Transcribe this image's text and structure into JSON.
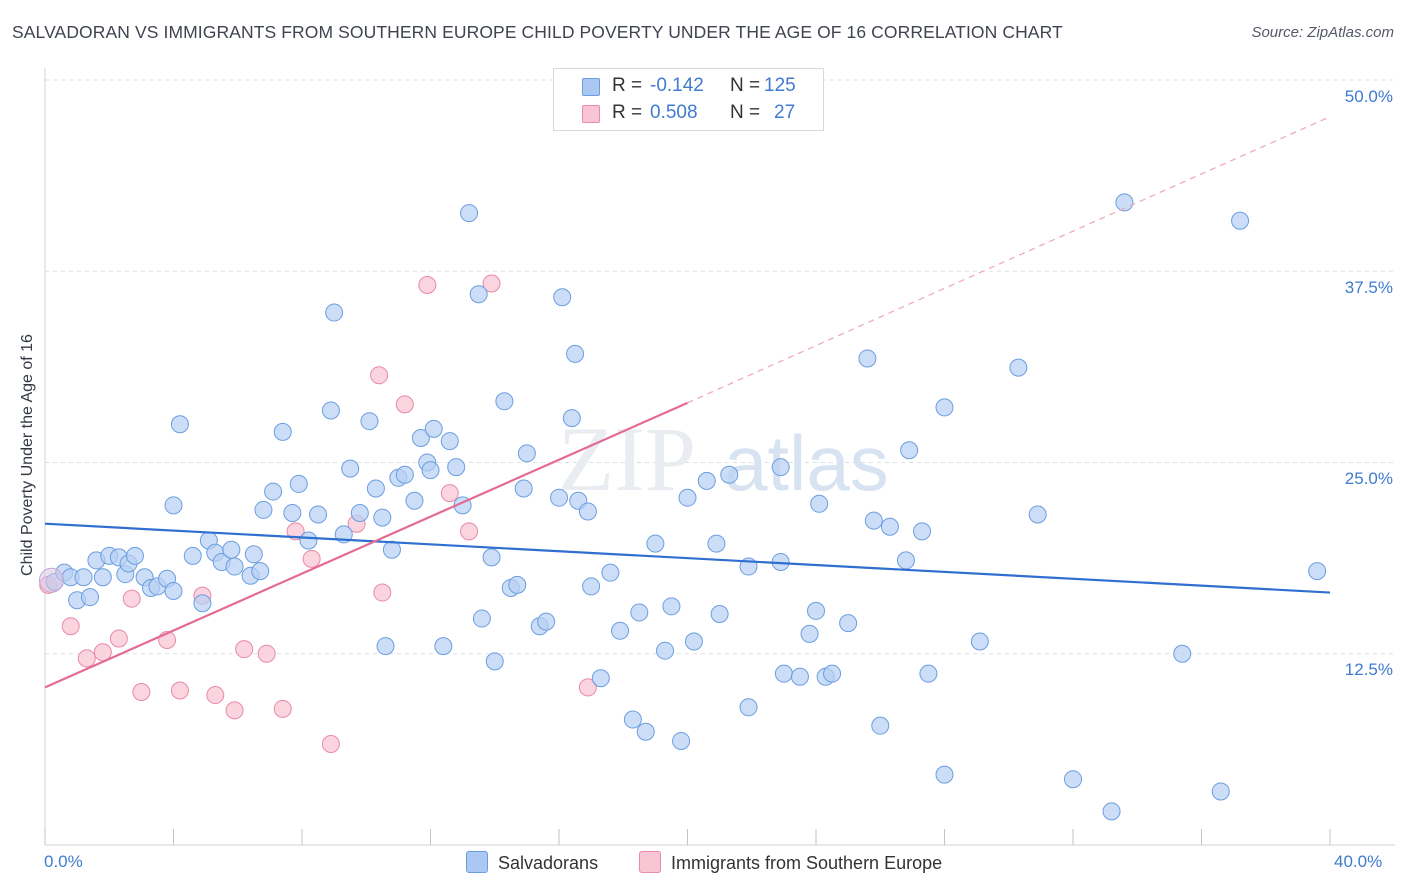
{
  "header": {
    "title": "SALVADORAN VS IMMIGRANTS FROM SOUTHERN EUROPE CHILD POVERTY UNDER THE AGE OF 16 CORRELATION CHART",
    "source": "Source: ZipAtlas.com"
  },
  "watermark": {
    "zip": "ZIP",
    "atlas": "atlas"
  },
  "legend": {
    "rows": [
      {
        "r_label": "R =",
        "r_value": "-0.142",
        "n_label": "N =",
        "n_value": "125",
        "color": "#aac8f2",
        "border": "#6b9ee0"
      },
      {
        "r_label": "R =",
        "r_value": "0.508",
        "n_label": "N =",
        "n_value": "27",
        "color": "#f8c5d4",
        "border": "#e88aa8"
      }
    ]
  },
  "bottom_legend": [
    {
      "label": "Salvadorans",
      "color": "#aac8f2",
      "border": "#6b9ee0"
    },
    {
      "label": "Immigrants from Southern Europe",
      "color": "#f8c5d4",
      "border": "#e88aa8"
    }
  ],
  "axis_text": {
    "ylabel": "Child Poverty Under the Age of 16",
    "x_min_label": "0.0%",
    "x_max_label": "40.0%",
    "y_ticks": [
      "50.0%",
      "37.5%",
      "25.0%",
      "12.5%"
    ]
  },
  "colors": {
    "blue": "#3f7bd0",
    "pink": "#e46a94",
    "blue_line": "#2f6fcf",
    "grid": "#dde1e6"
  },
  "chart_data": {
    "type": "scatter",
    "title": "SALVADORAN VS IMMIGRANTS FROM SOUTHERN EUROPE CHILD POVERTY UNDER THE AGE OF 16 CORRELATION CHART",
    "xlabel": "",
    "ylabel": "Child Poverty Under the Age of 16",
    "xlim": [
      0,
      40
    ],
    "ylim": [
      0,
      50
    ],
    "y_ticks": [
      12.5,
      25,
      37.5,
      50
    ],
    "grid": true,
    "legend_placement": "top-center",
    "series": [
      {
        "name": "Salvadorans",
        "R": -0.142,
        "N": 125,
        "trend": {
          "x": [
            0,
            40
          ],
          "y": [
            21.0,
            16.5
          ]
        },
        "points": [
          [
            0.3,
            17.2
          ],
          [
            0.6,
            17.8
          ],
          [
            0.8,
            17.5
          ],
          [
            1.0,
            16.0
          ],
          [
            1.2,
            17.5
          ],
          [
            1.4,
            16.2
          ],
          [
            1.6,
            18.6
          ],
          [
            1.8,
            17.5
          ],
          [
            2.0,
            18.9
          ],
          [
            2.3,
            18.8
          ],
          [
            2.5,
            17.7
          ],
          [
            2.6,
            18.4
          ],
          [
            2.8,
            18.9
          ],
          [
            3.1,
            17.5
          ],
          [
            3.3,
            16.8
          ],
          [
            3.5,
            16.9
          ],
          [
            3.8,
            17.4
          ],
          [
            4.0,
            16.6
          ],
          [
            4.2,
            27.5
          ],
          [
            4.6,
            18.9
          ],
          [
            4.0,
            22.2
          ],
          [
            4.9,
            15.8
          ],
          [
            5.1,
            19.9
          ],
          [
            5.3,
            19.1
          ],
          [
            5.5,
            18.5
          ],
          [
            5.8,
            19.3
          ],
          [
            5.9,
            18.2
          ],
          [
            6.4,
            17.6
          ],
          [
            6.5,
            19.0
          ],
          [
            6.7,
            17.9
          ],
          [
            6.8,
            21.9
          ],
          [
            7.1,
            23.1
          ],
          [
            7.4,
            27.0
          ],
          [
            7.7,
            21.7
          ],
          [
            7.9,
            23.6
          ],
          [
            8.2,
            19.9
          ],
          [
            8.5,
            21.6
          ],
          [
            8.9,
            28.4
          ],
          [
            9.0,
            34.8
          ],
          [
            9.3,
            20.3
          ],
          [
            9.5,
            24.6
          ],
          [
            9.8,
            21.7
          ],
          [
            10.1,
            27.7
          ],
          [
            10.3,
            23.3
          ],
          [
            10.5,
            21.4
          ],
          [
            10.6,
            13.0
          ],
          [
            10.8,
            19.3
          ],
          [
            11.0,
            24.0
          ],
          [
            11.2,
            24.2
          ],
          [
            11.5,
            22.5
          ],
          [
            11.7,
            26.6
          ],
          [
            11.9,
            25.0
          ],
          [
            12.0,
            24.5
          ],
          [
            12.1,
            27.2
          ],
          [
            12.4,
            13.0
          ],
          [
            12.6,
            26.4
          ],
          [
            12.8,
            24.7
          ],
          [
            13.0,
            22.2
          ],
          [
            13.2,
            41.3
          ],
          [
            13.5,
            36.0
          ],
          [
            13.6,
            14.8
          ],
          [
            13.9,
            18.8
          ],
          [
            14.0,
            12.0
          ],
          [
            14.3,
            29.0
          ],
          [
            14.5,
            16.8
          ],
          [
            14.7,
            17.0
          ],
          [
            15.0,
            25.6
          ],
          [
            14.9,
            23.3
          ],
          [
            15.4,
            14.3
          ],
          [
            15.6,
            14.6
          ],
          [
            16.0,
            22.7
          ],
          [
            16.1,
            35.8
          ],
          [
            16.4,
            27.9
          ],
          [
            16.5,
            32.1
          ],
          [
            16.6,
            22.5
          ],
          [
            16.9,
            21.8
          ],
          [
            17.0,
            16.9
          ],
          [
            17.3,
            10.9
          ],
          [
            17.6,
            17.8
          ],
          [
            17.9,
            14.0
          ],
          [
            18.3,
            8.2
          ],
          [
            18.5,
            15.2
          ],
          [
            18.7,
            7.4
          ],
          [
            19.0,
            19.7
          ],
          [
            19.3,
            12.7
          ],
          [
            19.5,
            15.6
          ],
          [
            19.8,
            6.8
          ],
          [
            20.0,
            22.7
          ],
          [
            20.2,
            13.3
          ],
          [
            20.6,
            23.8
          ],
          [
            20.9,
            19.7
          ],
          [
            21.0,
            15.1
          ],
          [
            21.3,
            24.2
          ],
          [
            21.9,
            9.0
          ],
          [
            21.9,
            18.2
          ],
          [
            22.9,
            18.5
          ],
          [
            23.0,
            11.2
          ],
          [
            23.5,
            11.0
          ],
          [
            23.8,
            13.8
          ],
          [
            24.0,
            15.3
          ],
          [
            24.3,
            11.0
          ],
          [
            24.5,
            11.2
          ],
          [
            25.0,
            14.5
          ],
          [
            25.6,
            31.8
          ],
          [
            25.8,
            21.2
          ],
          [
            26.3,
            20.8
          ],
          [
            26.0,
            7.8
          ],
          [
            26.8,
            18.6
          ],
          [
            26.9,
            25.8
          ],
          [
            27.3,
            20.5
          ],
          [
            27.5,
            11.2
          ],
          [
            28.0,
            4.6
          ],
          [
            29.1,
            13.3
          ],
          [
            30.9,
            21.6
          ],
          [
            32.0,
            4.3
          ],
          [
            33.2,
            2.2
          ],
          [
            33.6,
            42.0
          ],
          [
            35.4,
            12.5
          ],
          [
            36.6,
            3.5
          ],
          [
            37.2,
            40.8
          ],
          [
            39.6,
            17.9
          ],
          [
            28.0,
            28.6
          ],
          [
            30.3,
            31.2
          ],
          [
            22.9,
            24.7
          ],
          [
            24.1,
            22.3
          ]
        ]
      },
      {
        "name": "Immigrants from Southern Europe",
        "R": 0.508,
        "N": 27,
        "trend": {
          "x": [
            0,
            20
          ],
          "y": [
            10.3,
            28.9
          ]
        },
        "trend_extension": {
          "x": [
            20,
            40
          ],
          "y": [
            28.9,
            47.6
          ]
        },
        "points": [
          [
            0.1,
            17.0
          ],
          [
            0.8,
            14.3
          ],
          [
            1.3,
            12.2
          ],
          [
            1.8,
            12.6
          ],
          [
            2.3,
            13.5
          ],
          [
            2.7,
            16.1
          ],
          [
            3.0,
            10.0
          ],
          [
            3.8,
            13.4
          ],
          [
            4.2,
            10.1
          ],
          [
            4.9,
            16.3
          ],
          [
            5.3,
            9.8
          ],
          [
            5.9,
            8.8
          ],
          [
            6.2,
            12.8
          ],
          [
            6.9,
            12.5
          ],
          [
            7.4,
            8.9
          ],
          [
            7.8,
            20.5
          ],
          [
            8.3,
            18.7
          ],
          [
            8.9,
            6.6
          ],
          [
            9.7,
            21.0
          ],
          [
            10.4,
            30.7
          ],
          [
            10.5,
            16.5
          ],
          [
            11.2,
            28.8
          ],
          [
            11.9,
            36.6
          ],
          [
            12.6,
            23.0
          ],
          [
            13.2,
            20.5
          ],
          [
            13.9,
            36.7
          ],
          [
            16.9,
            10.3
          ]
        ]
      }
    ]
  }
}
